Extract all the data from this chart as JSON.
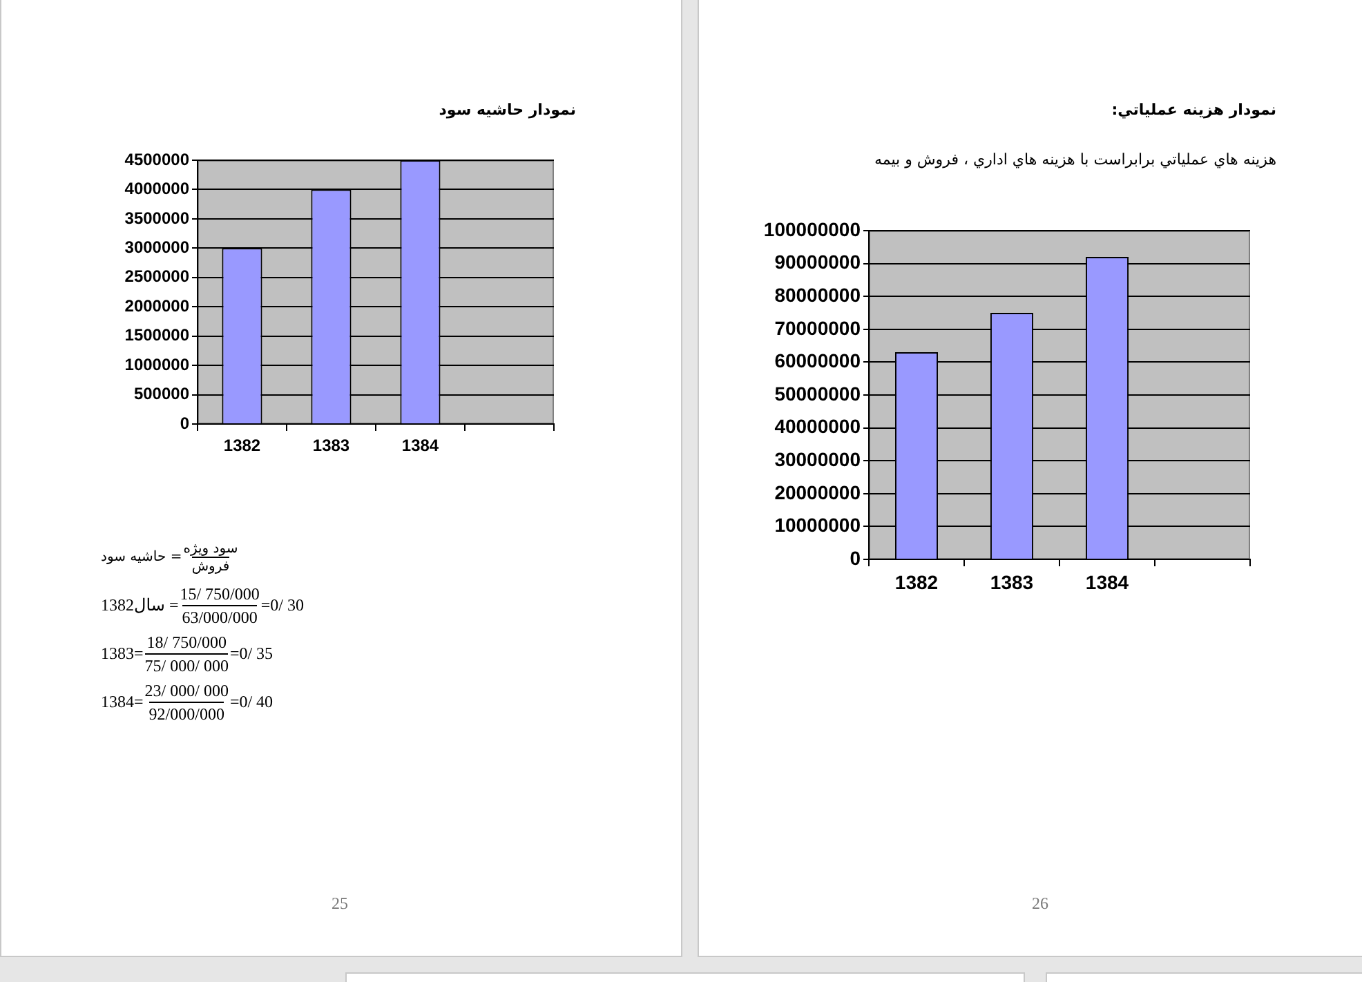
{
  "chart_data": [
    {
      "type": "bar",
      "title": "نمودار حاشيه سود",
      "categories": [
        "1382",
        "1383",
        "1384",
        null
      ],
      "values": [
        3000000,
        4000000,
        4500000,
        null
      ],
      "color": "#9999ff",
      "ylim": [
        0,
        4500000
      ],
      "yticks": [
        0,
        500000,
        1000000,
        1500000,
        2000000,
        2500000,
        3000000,
        3500000,
        4000000,
        4500000
      ],
      "grid": "y",
      "annotations": [
        "حاشيه سود =",
        "سود ويژه",
        "فروش",
        "سال1382 =",
        "15/ 750/000",
        "63/000/000",
        "=0/ 30",
        "1383=",
        "18/ 750/000",
        "75/ 000/ 000",
        "=0/ 35",
        "1384=",
        "23/ 000/ 000",
        "92/000/000",
        "=0/ 40",
        "25"
      ]
    },
    {
      "type": "bar",
      "title": "نمودار هزينه عملياتي:",
      "subtitle": "هزينه هاي عملياتي برابراست با هزينه هاي اداري ، فروش و بيمه",
      "categories": [
        "1382",
        "1383",
        "1384",
        null
      ],
      "values": [
        63000000,
        75000000,
        92000000,
        null
      ],
      "color": "#9999ff",
      "ylim": [
        0,
        100000000
      ],
      "yticks": [
        0,
        10000000,
        20000000,
        30000000,
        40000000,
        50000000,
        60000000,
        70000000,
        80000000,
        90000000,
        100000000
      ],
      "grid": "y",
      "annotations": [
        "26"
      ]
    }
  ]
}
